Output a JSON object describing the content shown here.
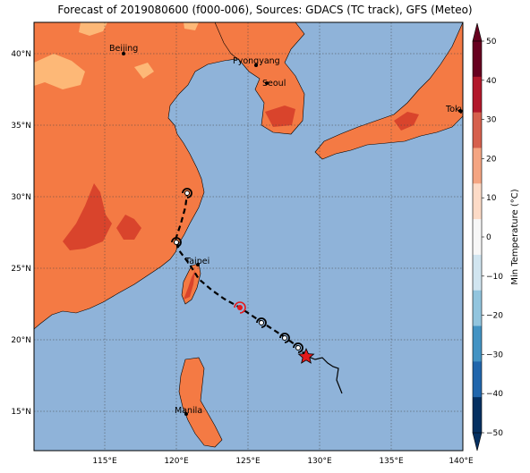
{
  "title": "Forecast of 2019080600 (f000-006), Sources: GDACS (TC track), GFS (Meteo)",
  "map": {
    "lat_ticks": [
      "40°N",
      "35°N",
      "30°N",
      "25°N",
      "20°N",
      "15°N"
    ],
    "lon_ticks": [
      "115°E",
      "120°E",
      "125°E",
      "130°E",
      "135°E",
      "140°E"
    ],
    "cities": [
      "Beijing",
      "Pyongyang",
      "Seoul",
      "Tokyo",
      "Taipei",
      "Manila"
    ],
    "colors": {
      "ocean": "#8fb3d9",
      "land": "#f47a44",
      "land_warm": "#d9442c",
      "land_cool": "#fdb877"
    }
  },
  "colorbar": {
    "label": "Min Temperature (°C)",
    "ticks": [
      "50",
      "40",
      "30",
      "20",
      "10",
      "0",
      "−10",
      "−20",
      "−30",
      "−40",
      "−50"
    ],
    "colors": [
      "#67001f",
      "#b2182b",
      "#d6604d",
      "#f4a582",
      "#fddbc7",
      "#f7f7f7",
      "#d1e5f0",
      "#92c5de",
      "#4393c3",
      "#2166ac",
      "#053061"
    ]
  }
}
